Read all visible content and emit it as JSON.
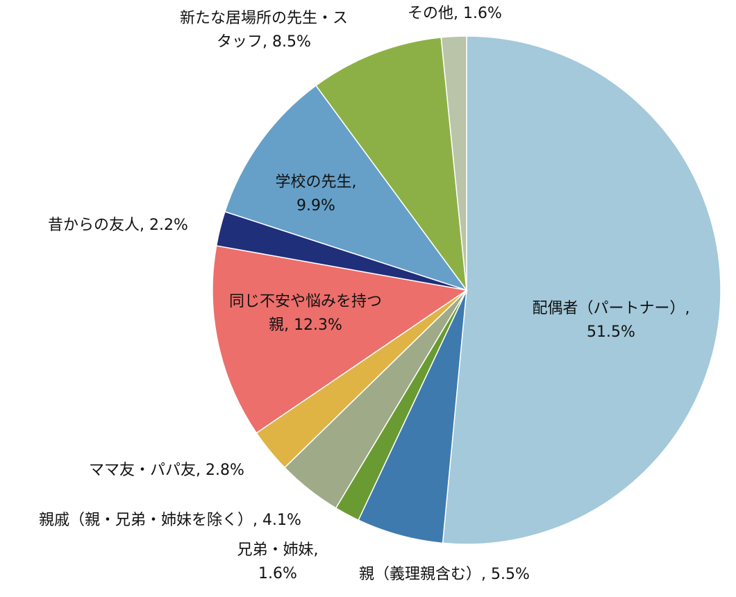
{
  "chart_data": {
    "type": "pie",
    "categories": [
      "配偶者（パートナー）",
      "親（義理親含む）",
      "兄弟・姉妹",
      "親戚（親・兄弟・姉妹を除く）",
      "ママ友・パパ友",
      "同じ不安や悩みを持つ親",
      "昔からの友人",
      "学校の先生",
      "新たな居場所の先生・スタッフ",
      "その他"
    ],
    "values": [
      51.5,
      5.5,
      1.6,
      4.1,
      2.8,
      12.3,
      2.2,
      9.9,
      8.5,
      1.6
    ],
    "value_labels": [
      "51.5%",
      "5.5%",
      "1.6%",
      "4.1%",
      "2.8%",
      "12.3%",
      "2.2%",
      "9.9%",
      "8.5%",
      "1.6%"
    ],
    "colors": [
      "#a3c9da",
      "#3e7aae",
      "#6a9a32",
      "#9fab88",
      "#dfb445",
      "#ec6f6b",
      "#1f2f7a",
      "#66a0c8",
      "#8db046",
      "#bac4a8"
    ]
  }
}
